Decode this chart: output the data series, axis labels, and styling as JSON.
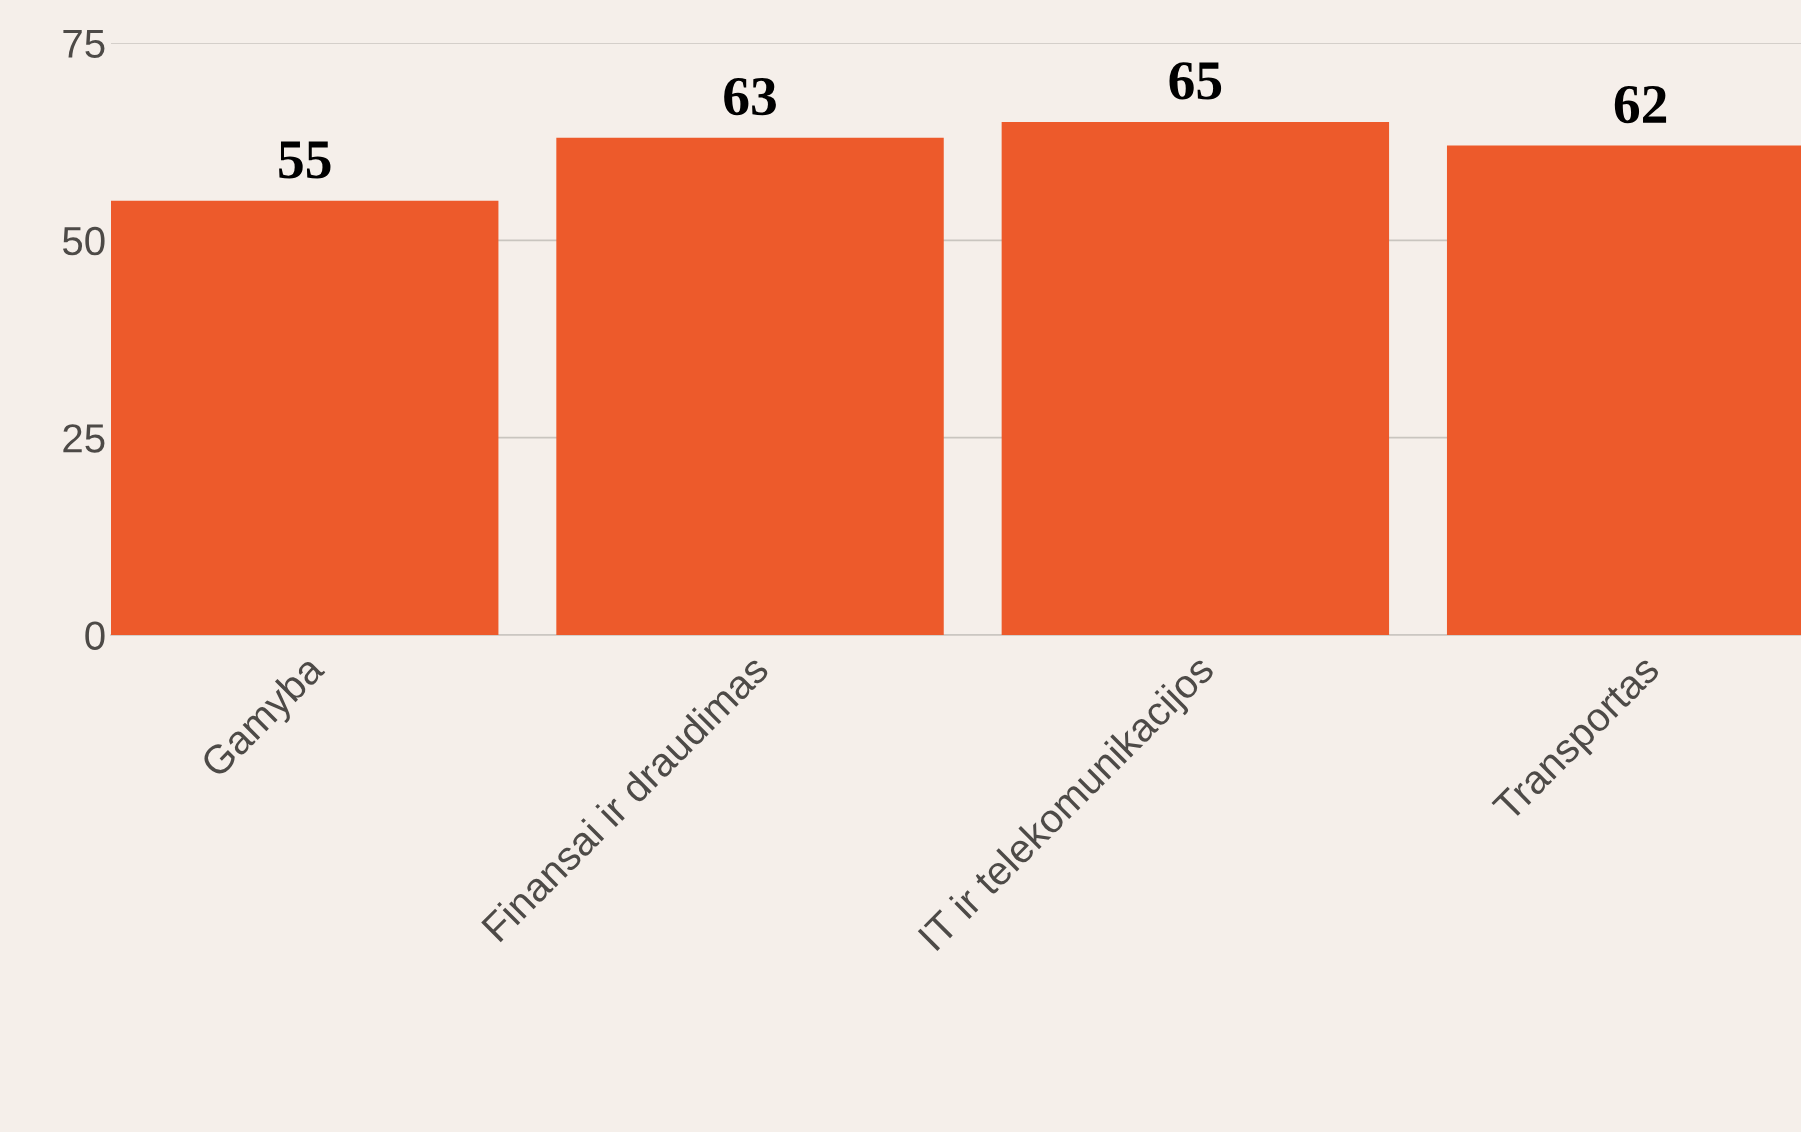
{
  "chart_data": {
    "type": "bar",
    "categories": [
      "Gamyba",
      "Finansai ir draudimas",
      "IT ir telekomunikacijos",
      "Transportas"
    ],
    "values": [
      55,
      63,
      65,
      62
    ],
    "color": "#ed5a2b",
    "ylim": [
      0,
      75
    ],
    "yticks": [
      0,
      25,
      50,
      75
    ],
    "grid": "y",
    "data_labels": true
  }
}
